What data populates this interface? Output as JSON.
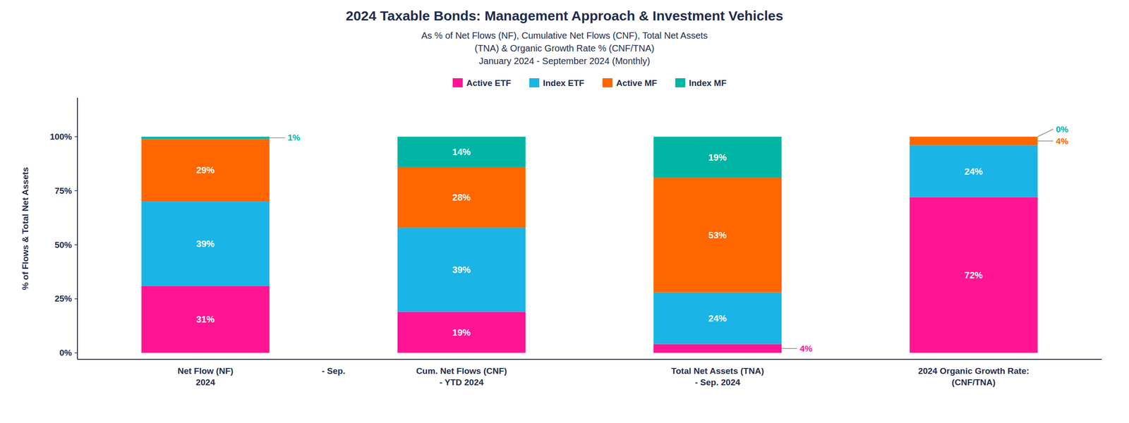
{
  "chart_data": {
    "type": "bar",
    "stacked": true,
    "title": "2024 Taxable Bonds: Management Approach & Investment Vehicles",
    "subtitle": [
      "As % of Net Flows (NF), Cumulative Net Flows (CNF), Total Net Assets",
      "(TNA) & Organic Growth Rate % (CNF/TNA)",
      "January 2024 - September 2024 (Monthly)"
    ],
    "ylabel": "% of Flows & Total Net Assets",
    "categories": [
      "Net Flow (NF)\n2024",
      "Cum. Net Flows (CNF)\n- YTD 2024",
      "Total Net Assets (TNA)\n- Sep. 2024",
      "2024 Organic Growth Rate:\n(CNF/TNA)"
    ],
    "series": [
      {
        "name": "Active ETF",
        "color": "#FF1493",
        "values": [
          31,
          19,
          4,
          72
        ],
        "value_labels": [
          "31%",
          "19%",
          "4%",
          "72%"
        ]
      },
      {
        "name": "Index ETF",
        "color": "#1BB4E6",
        "values": [
          39,
          39,
          24,
          24
        ],
        "value_labels": [
          "39%",
          "39%",
          "24%",
          "24%"
        ]
      },
      {
        "name": "Active MF",
        "color": "#FF6600",
        "values": [
          29,
          28,
          53,
          4
        ],
        "value_labels": [
          "29%",
          "28%",
          "53%",
          "4%"
        ]
      },
      {
        "name": "Index MF",
        "color": "#00B5A3",
        "values": [
          1,
          14,
          19,
          0
        ],
        "value_labels": [
          "1%",
          "14%",
          "19%",
          "0%"
        ]
      }
    ],
    "annotations": [
      "- Sep."
    ],
    "ylim": [
      -3,
      118
    ],
    "yticks": [
      {
        "value": 0,
        "label": "0%"
      },
      {
        "value": 25,
        "label": "25%"
      },
      {
        "value": 50,
        "label": "50%"
      },
      {
        "value": 75,
        "label": "75%"
      },
      {
        "value": 100,
        "label": "100%"
      }
    ],
    "grid": false,
    "legend": "upper center",
    "data_labels": true
  }
}
